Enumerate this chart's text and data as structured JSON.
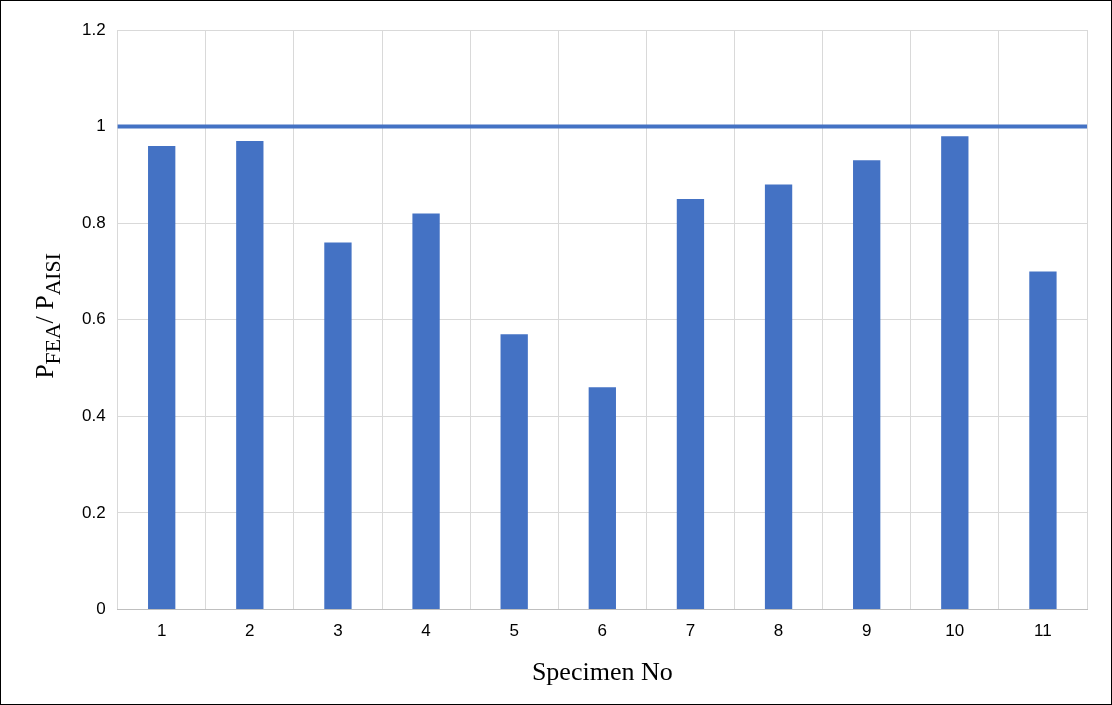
{
  "chart_data": {
    "type": "bar",
    "xlabel": "Specimen No",
    "ylabel": "P$_{FEA}$/ P$_{AISI}$",
    "categories": [
      "1",
      "2",
      "3",
      "4",
      "5",
      "6",
      "7",
      "8",
      "9",
      "10",
      "11"
    ],
    "values": [
      0.96,
      0.97,
      0.76,
      0.82,
      0.57,
      0.46,
      0.85,
      0.88,
      0.93,
      0.98,
      0.7
    ],
    "color": "#4472c4",
    "ylim": [
      0,
      1.2
    ],
    "yticks": [
      0,
      0.2,
      0.4,
      0.6,
      0.8,
      1,
      1.2
    ],
    "grid": true,
    "legend": false,
    "ref_lines": [
      {
        "axis": "y",
        "value": 1,
        "color": "#4472c4"
      }
    ]
  }
}
